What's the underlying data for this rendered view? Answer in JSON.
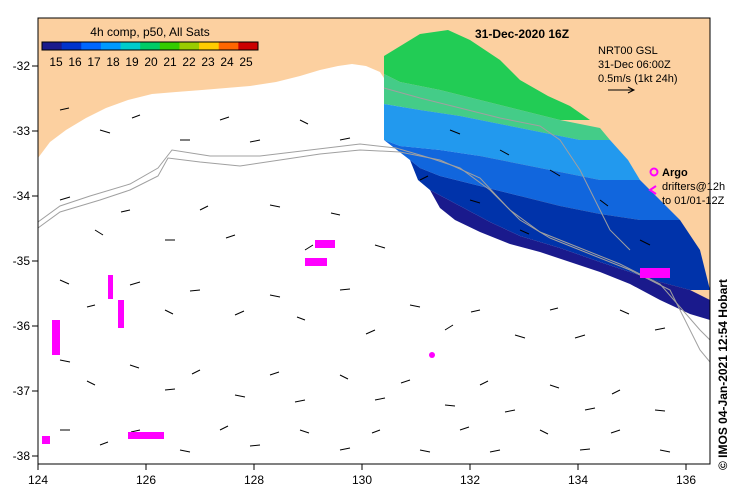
{
  "map": {
    "date_title": "31-Dec-2020 16Z",
    "composite_label": "4h comp, p50, All Sats",
    "sst_scale": {
      "ticks": [
        "15",
        "16",
        "17",
        "18",
        "19",
        "20",
        "21",
        "22",
        "23",
        "24",
        "25"
      ],
      "colors": [
        "#1a1a8c",
        "#0033cc",
        "#0066ff",
        "#0099ff",
        "#00cccc",
        "#00cc66",
        "#33cc00",
        "#99cc00",
        "#ffcc00",
        "#ff6600",
        "#cc0000"
      ]
    },
    "current_info": {
      "line1": "NRT00 GSL",
      "line2": "31-Dec 06:00Z",
      "line3": "0.5m/s (1kt 24h)"
    },
    "argo_legend": {
      "label": "Argo",
      "line1": "drifters@12h",
      "line2": "to 01/01-12Z"
    },
    "credit": "© IMOS 04-Jan-2021 12:54 Hobart",
    "x_axis": {
      "ticks": [
        "124",
        "126",
        "128",
        "130",
        "132",
        "134",
        "136"
      ],
      "range": [
        124,
        136.5
      ]
    },
    "y_axis": {
      "ticks": [
        "-32",
        "-33",
        "-34",
        "-35",
        "-36",
        "-37",
        "-38"
      ],
      "range": [
        -38.1,
        -31.4
      ]
    },
    "colors": {
      "land": "#fcd0a0",
      "ocean": "#ffffff",
      "argo": "#ff00ff",
      "contour": "#a0a0a0"
    }
  }
}
